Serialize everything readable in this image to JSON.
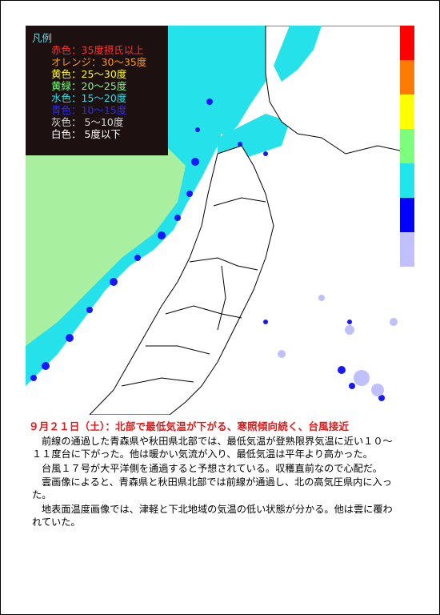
{
  "legend": {
    "title": "凡例",
    "items": [
      {
        "label": "赤色：35度摂氏以上",
        "color": "#ff2020"
      },
      {
        "label": "オレンジ：30～35度",
        "color": "#ff9a00"
      },
      {
        "label": "黄色：25～30度",
        "color": "#ffff00"
      },
      {
        "label": "黄緑：20～25度",
        "color": "#7dff7d"
      },
      {
        "label": "水色：15～20度",
        "color": "#23e0e8"
      },
      {
        "label": "青色：10～15度",
        "color": "#2020ff"
      },
      {
        "label": "灰色： 5～10度",
        "color": "#d0d0d0"
      },
      {
        "label": "白色： 5度以下",
        "color": "#ffffff"
      }
    ]
  },
  "colorbar": [
    "#ff0000",
    "#ff7a00",
    "#ffff00",
    "#7dff7d",
    "#20e6ec",
    "#0000ff",
    "#c0c0ff",
    "#ffffff"
  ],
  "headline": "９月２１日（土）：北部で最低気温が下がる、寒照傾向続く、台風接近",
  "paragraphs": [
    "前線の通過した青森県や秋田県北部では、最低気温が登熟限界気温に近い１０～１１度台に下がった。他は暖かい気流が入り、最低気温は平年より高かった。",
    "台風１７号が大平洋側を通過すると予想されている。収穫直前なので心配だ。",
    "雲画像によると、青森県と秋田県北部では前線が通過し、北の高気圧県内に入った。",
    "地表面温度画像では、津軽と下北地域の気温の低い状態が分かる。他は雲に覆われていた。"
  ]
}
